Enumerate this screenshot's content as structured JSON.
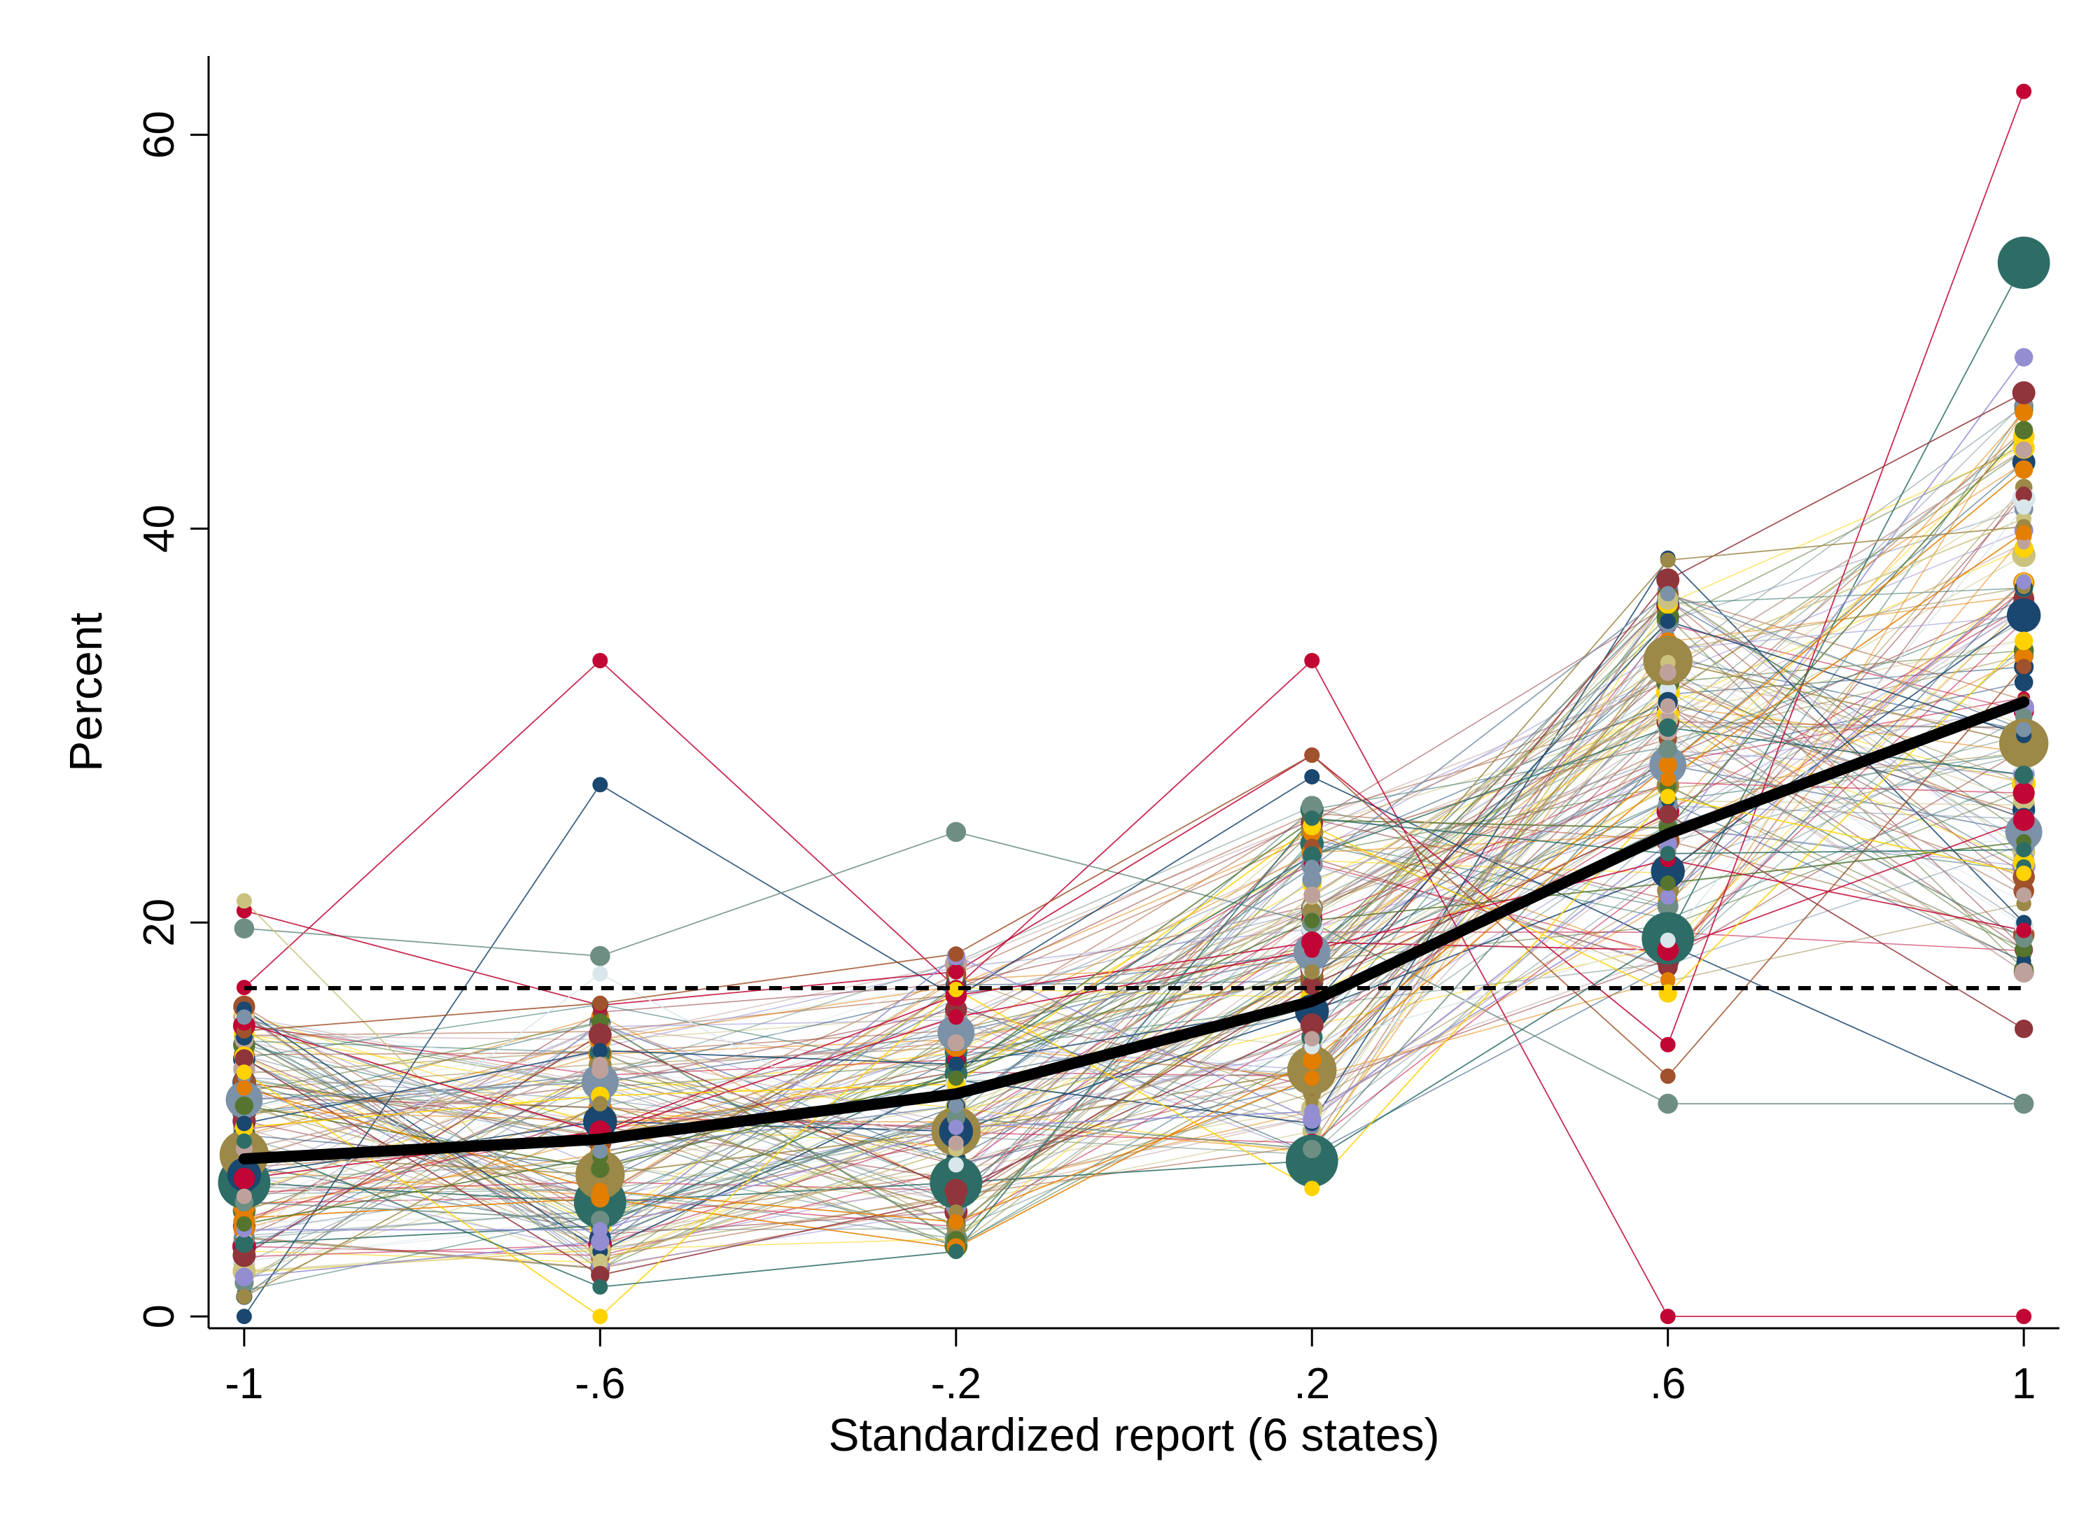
{
  "chart_data": {
    "type": "scatter",
    "xlabel": "Standardized report (6 states)",
    "ylabel": "Percent",
    "x": [
      -1,
      -0.6,
      -0.2,
      0.2,
      0.6,
      1
    ],
    "x_tick_labels": [
      "-1",
      "-.6",
      "-.2",
      ".2",
      ".6",
      "1"
    ],
    "y_ticks": [
      0,
      20,
      40,
      60
    ],
    "y_tick_labels": [
      "0",
      "20",
      "40",
      "60"
    ],
    "xlim": [
      -1.04,
      1.04
    ],
    "ylim": [
      -0.6,
      64
    ],
    "grid": false,
    "legend": "none",
    "palette": [
      "#1a476f",
      "#90353b",
      "#55752f",
      "#e37e00",
      "#6e8e84",
      "#c10534",
      "#938dd2",
      "#cac27e",
      "#a0522d",
      "#7b92a8",
      "#2d6d66",
      "#9c8847",
      "#bfa19c",
      "#ffd200",
      "#d9e6eb"
    ],
    "mean_line": {
      "name": "mean",
      "color": "#000000",
      "values": [
        8.0,
        9.0,
        11.3,
        16.0,
        24.5,
        31.2
      ]
    },
    "uniform_reference": {
      "name": "uniform",
      "color": "#000000",
      "style": "dashed",
      "value": 16.67
    },
    "series": [
      {
        "color": "#c10534",
        "size": 1,
        "values": [
          16.7,
          33.3,
          16.7,
          33.3,
          0,
          0
        ]
      },
      {
        "color": "#1a476f",
        "size": 1,
        "values": [
          0,
          27.0,
          16.2,
          27.4,
          18.9,
          10.8
        ]
      },
      {
        "color": "#6e8e84",
        "size": 1.3,
        "values": [
          19.7,
          18.3,
          24.6,
          20.0,
          10.8,
          10.8
        ]
      },
      {
        "color": "#c10534",
        "size": 1,
        "values": [
          20.6,
          15.8,
          17.5,
          28.5,
          13.8,
          62.2
        ]
      },
      {
        "color": "#1a476f",
        "size": 1,
        "values": [
          15.6,
          3.3,
          12.0,
          9.8,
          38.5,
          20.0
        ]
      },
      {
        "color": "#2d6d66",
        "size": 3.4,
        "values": [
          6.8,
          5.8,
          6.8,
          7.9,
          19.2,
          53.5
        ]
      },
      {
        "color": "#9c8847",
        "size": 3.2,
        "values": [
          8.2,
          7.2,
          9.4,
          12.5,
          33.3,
          29.1
        ]
      },
      {
        "color": "#7b92a8",
        "size": 2.4,
        "values": [
          11.0,
          11.9,
          14.4,
          18.5,
          28.0,
          24.6
        ]
      },
      {
        "color": "#1a476f",
        "size": 2.2,
        "values": [
          7.2,
          9.9,
          9.4,
          15.5,
          22.6,
          35.6
        ]
      },
      {
        "color": "#938dd2",
        "size": 1.2,
        "values": [
          2.0,
          3.8,
          18.3,
          10.0,
          24.0,
          48.7
        ]
      },
      {
        "color": "#90353b",
        "size": 1.5,
        "values": [
          3.1,
          14.3,
          6.4,
          14.8,
          37.4,
          46.9
        ]
      },
      {
        "color": "#c10534",
        "size": 1.4,
        "values": [
          7.0,
          9.4,
          16.3,
          19.0,
          18.6,
          25.2
        ]
      },
      {
        "color": "#55752f",
        "size": 1.2,
        "values": [
          10.7,
          7.5,
          12.3,
          25.2,
          24.8,
          45.0
        ]
      },
      {
        "color": "#e37e00",
        "size": 1.2,
        "values": [
          5.0,
          6.0,
          3.5,
          13.0,
          28.0,
          43.0
        ]
      },
      {
        "color": "#ffd200",
        "size": 1.2,
        "values": [
          9.6,
          11.2,
          11.8,
          24.9,
          16.4,
          34.3
        ]
      },
      {
        "color": "#cac27e",
        "size": 1.0,
        "values": [
          21.1,
          2.8,
          8.5,
          21.3,
          33.2,
          40.5
        ]
      },
      {
        "color": "#bfa19c",
        "size": 1.1,
        "values": [
          8.5,
          12.5,
          13.9,
          21.4,
          32.7,
          44.0
        ]
      },
      {
        "color": "#d9e6eb",
        "size": 1.0,
        "values": [
          3.9,
          17.4,
          7.7,
          13.7,
          19.1,
          41.1
        ]
      },
      {
        "color": "#a0522d",
        "size": 1.0,
        "values": [
          14.5,
          15.9,
          18.4,
          28.5,
          12.2,
          33.0
        ]
      },
      {
        "color": "#2d6d66",
        "size": 1.2,
        "values": [
          3.7,
          4.6,
          12.5,
          23.4,
          29.9,
          27.5
        ]
      },
      {
        "color": "#90353b",
        "size": 1.2,
        "values": [
          13.1,
          2.1,
          6.0,
          16.8,
          25.5,
          14.6
        ]
      },
      {
        "color": "#9c8847",
        "size": 1.0,
        "values": [
          1.0,
          10.8,
          5.3,
          17.5,
          38.4,
          40.1
        ]
      },
      {
        "color": "#6e8e84",
        "size": 1.2,
        "values": [
          5.8,
          4.9,
          10.1,
          8.5,
          28.8,
          19.2
        ]
      },
      {
        "color": "#938dd2",
        "size": 1.0,
        "values": [
          4.4,
          4.4,
          9.6,
          10.4,
          21.3,
          37.3
        ]
      },
      {
        "color": "#1a476f",
        "size": 1.0,
        "values": [
          9.8,
          13.5,
          12.8,
          15.8,
          35.3,
          29.5
        ]
      },
      {
        "color": "#ffd200",
        "size": 1.0,
        "values": [
          12.4,
          0,
          16.6,
          6.5,
          26.4,
          22.5
        ]
      },
      {
        "color": "#55752f",
        "size": 1.0,
        "values": [
          4.7,
          8.1,
          12.1,
          20.1,
          22.0,
          24.1
        ]
      },
      {
        "color": "#e37e00",
        "size": 1.0,
        "values": [
          11.6,
          6.4,
          4.8,
          12.1,
          27.3,
          39.8
        ]
      },
      {
        "color": "#c10534",
        "size": 1.0,
        "values": [
          14.9,
          9.3,
          15.2,
          18.6,
          23.2,
          19.6
        ]
      },
      {
        "color": "#7b92a8",
        "size": 1.0,
        "values": [
          15.2,
          8.4,
          10.7,
          22.8,
          36.7,
          29.8
        ]
      },
      {
        "color": "#bfa19c",
        "size": 1.0,
        "values": [
          6.1,
          12.8,
          8.8,
          14.1,
          31.0,
          21.4
        ]
      },
      {
        "color": "#2d6d66",
        "size": 1.0,
        "values": [
          8.9,
          1.5,
          3.3,
          25.3,
          23.5,
          23.7
        ]
      }
    ]
  }
}
